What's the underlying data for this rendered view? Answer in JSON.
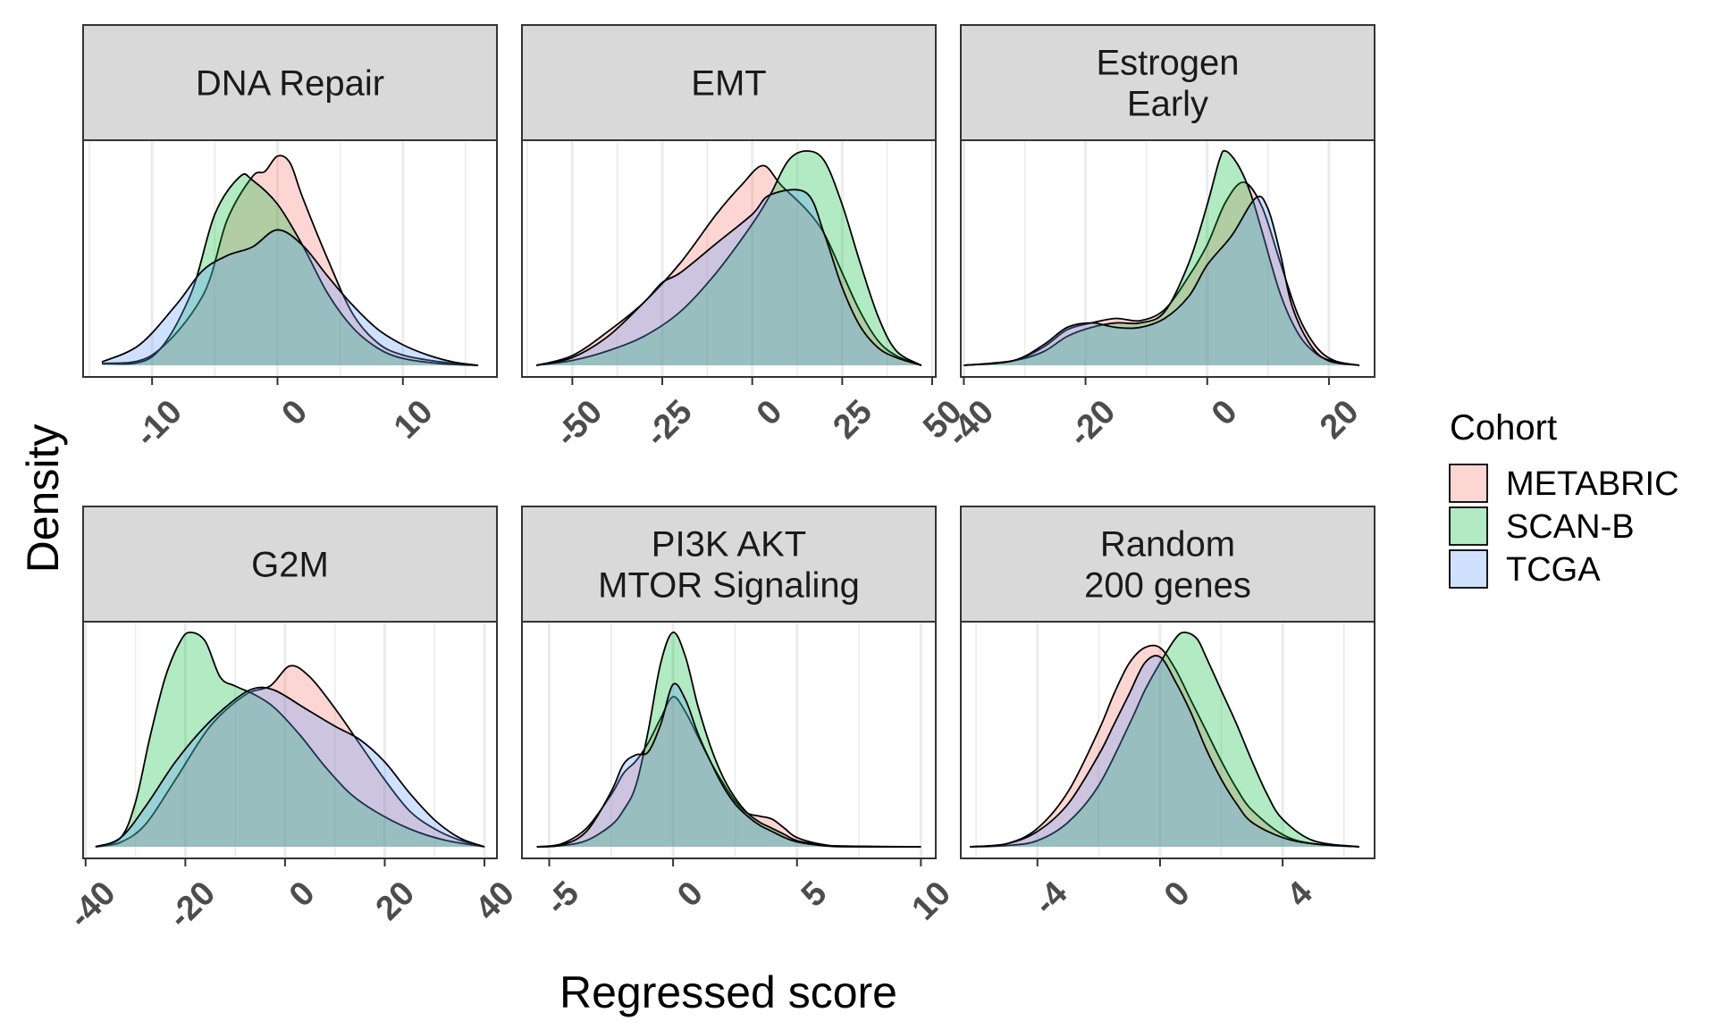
{
  "chart_data": {
    "type": "area",
    "xlabel": "Regressed score",
    "ylabel": "Density",
    "legend": {
      "title": "Cohort",
      "placement": "right",
      "entries": [
        {
          "name": "METABRIC",
          "color": "#F8766D"
        },
        {
          "name": "SCAN-B",
          "color": "#00BA38"
        },
        {
          "name": "TCGA",
          "color": "#619CFF"
        }
      ]
    },
    "fill_opacity": 0.3,
    "grid": true,
    "panels": [
      {
        "title_lines": [
          "DNA Repair"
        ],
        "xlim": [
          -15.5,
          17.5
        ],
        "ymax": 0.125,
        "ticks": [
          -10,
          0,
          10
        ],
        "tick_labels": [
          "-10",
          "0",
          "10"
        ],
        "series": [
          {
            "name": "METABRIC",
            "x": [
              -14,
              -10,
              -6,
              -4,
              -2,
              -1,
              0,
              1,
              2,
              4,
              6,
              8,
              10,
              13,
              16
            ],
            "y": [
              0.001,
              0.006,
              0.04,
              0.085,
              0.11,
              0.113,
              0.122,
              0.118,
              0.098,
              0.062,
              0.03,
              0.013,
              0.006,
              0.002,
              0.0
            ]
          },
          {
            "name": "SCAN-B",
            "x": [
              -14,
              -10,
              -7,
              -5,
              -3,
              -2,
              0,
              2,
              4,
              6,
              8,
              10,
              13,
              16
            ],
            "y": [
              0.001,
              0.005,
              0.04,
              0.088,
              0.11,
              0.108,
              0.094,
              0.07,
              0.042,
              0.022,
              0.01,
              0.004,
              0.001,
              0.0
            ]
          },
          {
            "name": "TCGA",
            "x": [
              -14,
              -11,
              -8,
              -6,
              -4,
              -2,
              0,
              2,
              4,
              6,
              8,
              10,
              12,
              14,
              16
            ],
            "y": [
              0.002,
              0.012,
              0.036,
              0.055,
              0.064,
              0.069,
              0.079,
              0.07,
              0.052,
              0.035,
              0.021,
              0.012,
              0.006,
              0.002,
              0.0
            ]
          }
        ]
      },
      {
        "title_lines": [
          "EMT"
        ],
        "xlim": [
          -64,
          51
        ],
        "ymax": 0.022,
        "ticks": [
          -50,
          -25,
          0,
          25,
          50
        ],
        "tick_labels": [
          "-50",
          "-25",
          "0",
          "25",
          "50"
        ],
        "series": [
          {
            "name": "METABRIC",
            "x": [
              -60,
              -50,
              -40,
              -30,
              -20,
              -10,
              -3,
              3,
              8,
              15,
              20,
              25,
              30,
              35,
              40,
              47
            ],
            "y": [
              0.0,
              0.001,
              0.0035,
              0.0065,
              0.0105,
              0.0155,
              0.0185,
              0.0205,
              0.0185,
              0.016,
              0.0135,
              0.0095,
              0.0055,
              0.0025,
              0.001,
              0.0
            ]
          },
          {
            "name": "SCAN-B",
            "x": [
              -60,
              -50,
              -40,
              -30,
              -20,
              -10,
              0,
              5,
              10,
              15,
              20,
              25,
              30,
              35,
              40,
              47
            ],
            "y": [
              0.0,
              0.0005,
              0.0015,
              0.003,
              0.0055,
              0.0095,
              0.0145,
              0.0175,
              0.021,
              0.022,
              0.021,
              0.0165,
              0.0105,
              0.005,
              0.0015,
              0.0
            ]
          },
          {
            "name": "TCGA",
            "x": [
              -60,
              -50,
              -40,
              -30,
              -25,
              -20,
              -10,
              0,
              5,
              15,
              20,
              25,
              30,
              35,
              40,
              47
            ],
            "y": [
              0.0,
              0.0008,
              0.003,
              0.0065,
              0.0085,
              0.0095,
              0.0125,
              0.0155,
              0.0175,
              0.0177,
              0.0135,
              0.008,
              0.004,
              0.0018,
              0.0008,
              0.0
            ]
          }
        ]
      },
      {
        "title_lines": [
          "Estrogen",
          "Early"
        ],
        "xlim": [
          -40.5,
          27.5
        ],
        "ymax": 0.048,
        "ticks": [
          -40,
          -20,
          0,
          20
        ],
        "tick_labels": [
          "-40",
          "-20",
          "0",
          "20"
        ],
        "series": [
          {
            "name": "METABRIC",
            "x": [
              -40,
              -32,
              -27,
              -23,
              -19,
              -15,
              -11,
              -7,
              -3,
              0,
              3,
              6,
              9,
              12,
              15,
              18,
              21,
              25
            ],
            "y": [
              0.0,
              0.001,
              0.004,
              0.008,
              0.0095,
              0.0105,
              0.01,
              0.0125,
              0.02,
              0.027,
              0.0365,
              0.041,
              0.0355,
              0.023,
              0.011,
              0.004,
              0.001,
              0.0
            ]
          },
          {
            "name": "SCAN-B",
            "x": [
              -40,
              -32,
              -27,
              -23,
              -19,
              -15,
              -11,
              -7,
              -3,
              0,
              2,
              3,
              5,
              7,
              9,
              12,
              15,
              18,
              21,
              25
            ],
            "y": [
              0.0,
              0.001,
              0.003,
              0.0065,
              0.0085,
              0.0095,
              0.0095,
              0.012,
              0.023,
              0.036,
              0.046,
              0.048,
              0.045,
              0.039,
              0.03,
              0.016,
              0.007,
              0.0025,
              0.0008,
              0.0
            ]
          },
          {
            "name": "TCGA",
            "x": [
              -40,
              -32,
              -27,
              -23,
              -19,
              -15,
              -11,
              -7,
              -3,
              0,
              4,
              8,
              10,
              12,
              14,
              17,
              20,
              25
            ],
            "y": [
              0.0,
              0.001,
              0.0045,
              0.0085,
              0.0095,
              0.0085,
              0.0085,
              0.0105,
              0.0155,
              0.0225,
              0.029,
              0.0375,
              0.035,
              0.025,
              0.013,
              0.0045,
              0.001,
              0.0
            ]
          }
        ]
      },
      {
        "title_lines": [
          "G2M"
        ],
        "xlim": [
          -40.5,
          42.5
        ],
        "ymax": 0.048,
        "ticks": [
          -40,
          -20,
          0,
          20,
          40
        ],
        "tick_labels": [
          "-40",
          "-20",
          "0",
          "20",
          "40"
        ],
        "series": [
          {
            "name": "METABRIC",
            "x": [
              -38,
              -33,
              -28,
              -22,
              -15,
              -8,
              -3,
              1,
              5,
              10,
              15,
              20,
              25,
              30,
              35,
              40
            ],
            "y": [
              0.0,
              0.001,
              0.005,
              0.015,
              0.027,
              0.034,
              0.036,
              0.0405,
              0.038,
              0.031,
              0.023,
              0.015,
              0.008,
              0.004,
              0.0015,
              0.0
            ]
          },
          {
            "name": "SCAN-B",
            "x": [
              -38,
              -33,
              -30,
              -27,
              -24,
              -21,
              -19,
              -16,
              -13,
              -10,
              -6,
              -2,
              3,
              8,
              13,
              18,
              25,
              32,
              40
            ],
            "y": [
              0.0,
              0.002,
              0.01,
              0.025,
              0.038,
              0.046,
              0.048,
              0.046,
              0.038,
              0.036,
              0.034,
              0.031,
              0.025,
              0.018,
              0.012,
              0.008,
              0.004,
              0.0015,
              0.0
            ]
          },
          {
            "name": "TCGA",
            "x": [
              -38,
              -33,
              -28,
              -22,
              -16,
              -10,
              -6,
              -2,
              4,
              10,
              15,
              20,
              25,
              30,
              35,
              40
            ],
            "y": [
              0.0,
              0.002,
              0.009,
              0.019,
              0.027,
              0.033,
              0.0355,
              0.035,
              0.031,
              0.027,
              0.024,
              0.019,
              0.012,
              0.006,
              0.002,
              0.0
            ]
          }
        ]
      },
      {
        "title_lines": [
          "PI3K AKT",
          "MTOR Signaling"
        ],
        "xlim": [
          -6.1,
          10.6
        ],
        "ymax": 0.35,
        "ticks": [
          -5,
          0,
          5,
          10
        ],
        "tick_labels": [
          "-5",
          "0",
          "5",
          "10"
        ],
        "series": [
          {
            "name": "METABRIC",
            "x": [
              -5.5,
              -4.5,
              -3.5,
              -2.5,
              -2,
              -1.5,
              -1,
              -0.5,
              0,
              0.5,
              1,
              1.5,
              2,
              2.5,
              3,
              3.5,
              4,
              4.5,
              5,
              6,
              7,
              10
            ],
            "y": [
              0.0,
              0.005,
              0.03,
              0.085,
              0.12,
              0.14,
              0.17,
              0.21,
              0.245,
              0.22,
              0.18,
              0.14,
              0.105,
              0.075,
              0.055,
              0.05,
              0.045,
              0.03,
              0.015,
              0.004,
              0.001,
              0.0
            ]
          },
          {
            "name": "SCAN-B",
            "x": [
              -5.5,
              -4.5,
              -3.5,
              -2.5,
              -2,
              -1.5,
              -1,
              -0.5,
              0,
              0.5,
              1,
              1.5,
              2,
              2.5,
              3,
              3.5,
              4,
              4.5,
              5,
              6,
              7,
              10
            ],
            "y": [
              0.0,
              0.002,
              0.01,
              0.035,
              0.06,
              0.1,
              0.19,
              0.3,
              0.35,
              0.31,
              0.23,
              0.165,
              0.115,
              0.08,
              0.055,
              0.04,
              0.03,
              0.02,
              0.01,
              0.003,
              0.001,
              0.0
            ]
          },
          {
            "name": "TCGA",
            "x": [
              -5.5,
              -4.5,
              -3.5,
              -2.5,
              -2,
              -1.5,
              -1,
              -0.5,
              0,
              0.5,
              1,
              1.5,
              2,
              2.5,
              3,
              3.5,
              4,
              4.5,
              5,
              6,
              7,
              10
            ],
            "y": [
              0.0,
              0.003,
              0.025,
              0.09,
              0.135,
              0.15,
              0.155,
              0.2,
              0.265,
              0.24,
              0.185,
              0.14,
              0.1,
              0.07,
              0.05,
              0.035,
              0.025,
              0.015,
              0.008,
              0.002,
              0.0,
              0.0
            ]
          }
        ]
      },
      {
        "title_lines": [
          "Random",
          "200 genes"
        ],
        "xlim": [
          -6.5,
          7.0
        ],
        "ymax": 0.35,
        "ticks": [
          -4,
          0,
          4
        ],
        "tick_labels": [
          "-4",
          "0",
          "4"
        ],
        "series": [
          {
            "name": "METABRIC",
            "x": [
              -6.2,
              -5,
              -4,
              -3,
              -2,
              -1.5,
              -1,
              -0.5,
              0,
              0.5,
              1,
              1.5,
              2,
              2.5,
              3,
              4,
              5,
              6.5
            ],
            "y": [
              0.0,
              0.005,
              0.03,
              0.09,
              0.19,
              0.25,
              0.3,
              0.325,
              0.325,
              0.29,
              0.24,
              0.19,
              0.14,
              0.095,
              0.06,
              0.02,
              0.005,
              0.0
            ]
          },
          {
            "name": "SCAN-B",
            "x": [
              -6.2,
              -5,
              -4,
              -3,
              -2,
              -1,
              -0.5,
              0,
              0.5,
              0.8,
              1.2,
              1.5,
              2,
              2.5,
              3,
              3.5,
              4,
              5,
              6.5
            ],
            "y": [
              0.0,
              0.002,
              0.01,
              0.04,
              0.1,
              0.2,
              0.255,
              0.3,
              0.34,
              0.35,
              0.34,
              0.31,
              0.255,
              0.2,
              0.14,
              0.085,
              0.045,
              0.01,
              0.0
            ]
          },
          {
            "name": "TCGA",
            "x": [
              -6.2,
              -5,
              -4,
              -3,
              -2,
              -1.5,
              -1,
              -0.5,
              0,
              0.5,
              1,
              1.5,
              2,
              2.5,
              3,
              4,
              5,
              6.5
            ],
            "y": [
              0.0,
              0.005,
              0.025,
              0.07,
              0.15,
              0.2,
              0.25,
              0.3,
              0.31,
              0.27,
              0.22,
              0.16,
              0.11,
              0.07,
              0.04,
              0.015,
              0.005,
              0.0
            ]
          }
        ]
      }
    ]
  }
}
